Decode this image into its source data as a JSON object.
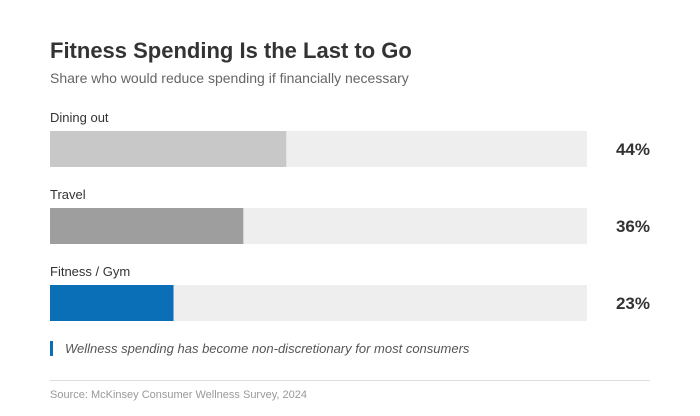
{
  "chart_data": {
    "type": "bar",
    "orientation": "horizontal",
    "title": "Fitness Spending Is the Last to Go",
    "subtitle": "Share who would reduce spending if financially necessary",
    "categories": [
      "Dining out",
      "Travel",
      "Fitness / Gym"
    ],
    "values": [
      44,
      36,
      23
    ],
    "value_labels": [
      "44%",
      "36%",
      "23%"
    ],
    "xlim": [
      0,
      100
    ],
    "unit": "%",
    "colors": [
      "#c8c8c8",
      "#9e9e9e",
      "#0b6fb8"
    ],
    "track_color": "#eeeeee",
    "annotation": "Wellness spending has become non-discretionary for most consumers",
    "source": "Source: McKinsey Consumer Wellness Survey, 2024"
  }
}
